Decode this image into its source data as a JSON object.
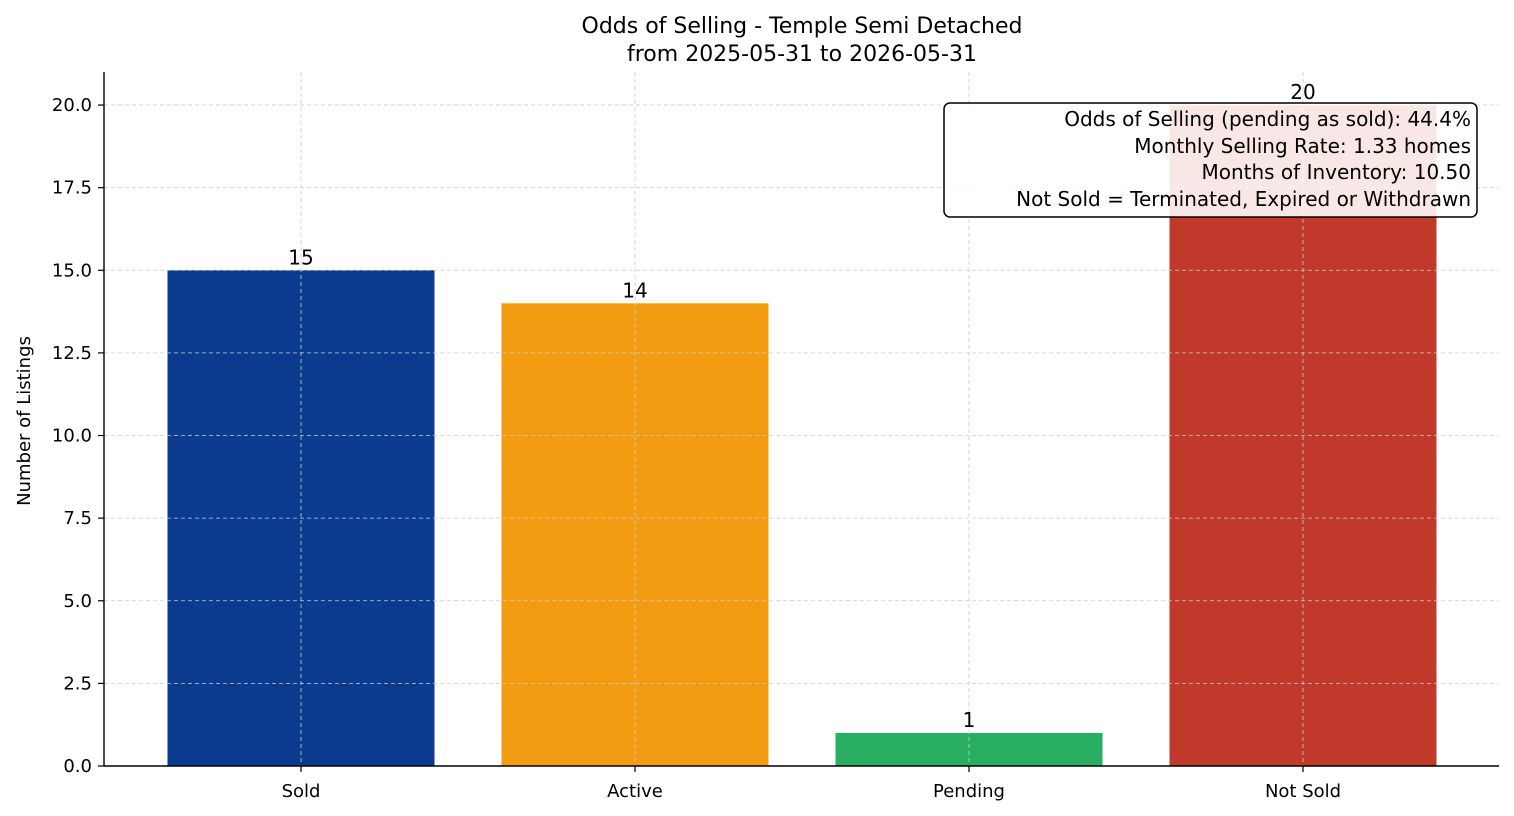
{
  "chart_data": {
    "type": "bar",
    "title": "Odds of Selling - Temple Semi Detached",
    "subtitle": "from 2025-05-31 to 2026-05-31",
    "xlabel": "",
    "ylabel": "Number of Listings",
    "categories": [
      "Sold",
      "Active",
      "Pending",
      "Not Sold"
    ],
    "values": [
      15,
      14,
      1,
      20
    ],
    "value_labels": [
      "15",
      "14",
      "1",
      "20"
    ],
    "colors": [
      "#0b3b8f",
      "#f39c12",
      "#27ae60",
      "#c0392b"
    ],
    "ylim": [
      0,
      21
    ],
    "yticks": [
      0,
      2.5,
      5,
      7.5,
      10,
      12.5,
      15,
      17.5,
      20
    ],
    "ytick_labels": [
      "0.0",
      "2.5",
      "5.0",
      "7.5",
      "10.0",
      "12.5",
      "15.0",
      "17.5",
      "20.0"
    ],
    "grid": true,
    "annotation": {
      "placement": "top-right",
      "lines": [
        "Odds of Selling (pending as sold): 44.4%",
        "Monthly Selling Rate: 1.33 homes",
        "Months of Inventory: 10.50",
        "Not Sold = Terminated, Expired or Withdrawn"
      ]
    }
  }
}
